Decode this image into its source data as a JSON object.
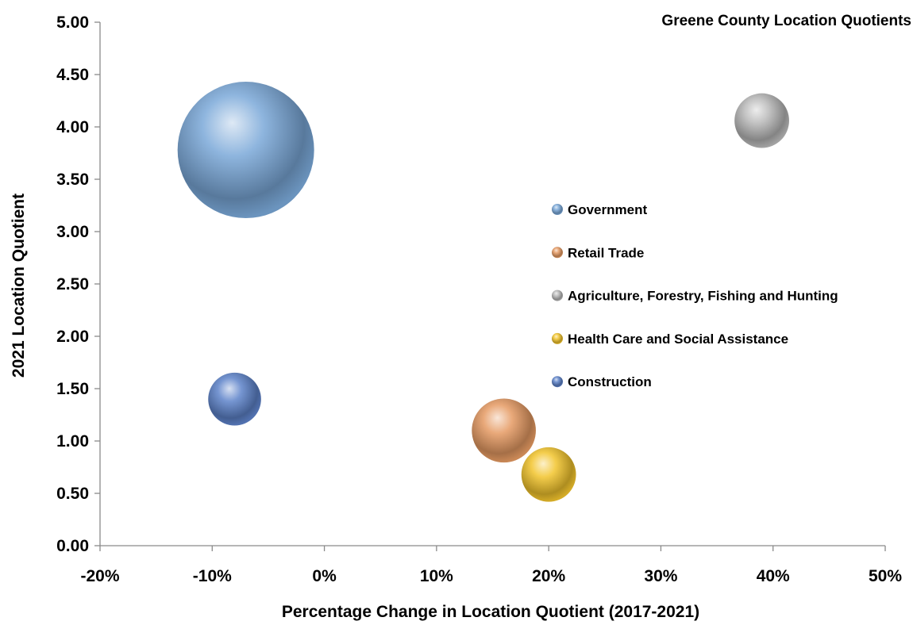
{
  "chart_data": {
    "type": "bubble",
    "title": "Greene County Location Quotients",
    "xlabel": "Percentage Change in Location Quotient (2017-2021)",
    "ylabel": "2021 Location Quotient",
    "xlim": [
      -0.2,
      0.5
    ],
    "ylim": [
      0,
      5
    ],
    "x_ticks": [
      -0.2,
      -0.1,
      0,
      0.1,
      0.2,
      0.3,
      0.4,
      0.5
    ],
    "x_tick_labels": [
      "-20%",
      "-10%",
      "0%",
      "10%",
      "20%",
      "30%",
      "40%",
      "50%"
    ],
    "y_ticks": [
      0,
      0.5,
      1,
      1.5,
      2,
      2.5,
      3,
      3.5,
      4,
      4.5,
      5
    ],
    "y_tick_labels": [
      "0.00",
      "0.50",
      "1.00",
      "1.50",
      "2.00",
      "2.50",
      "3.00",
      "3.50",
      "4.00",
      "4.50",
      "5.00"
    ],
    "grid": false,
    "legend_position": "center-right",
    "series": [
      {
        "name": "Government",
        "x": -0.07,
        "y": 3.78,
        "size": 100,
        "color": "#7aa8d8"
      },
      {
        "name": "Retail Trade",
        "x": 0.16,
        "y": 1.1,
        "size": 22,
        "color": "#e59a62"
      },
      {
        "name": "Agriculture, Forestry, Fishing and Hunting",
        "x": 0.39,
        "y": 4.06,
        "size": 16,
        "color": "#b8b8b8"
      },
      {
        "name": "Health Care and Social Assistance",
        "x": 0.2,
        "y": 0.68,
        "size": 16,
        "color": "#f2c42c"
      },
      {
        "name": "Construction",
        "x": -0.08,
        "y": 1.4,
        "size": 15,
        "color": "#5d82c9"
      }
    ]
  }
}
